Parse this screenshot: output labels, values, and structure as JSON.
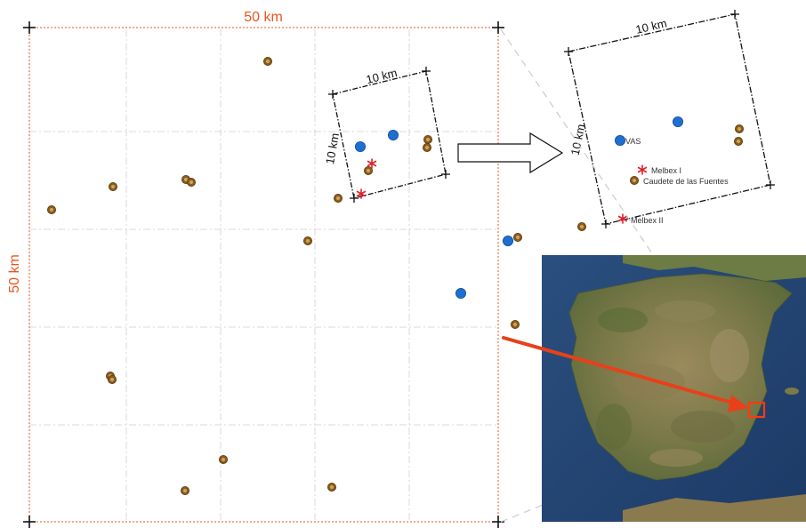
{
  "main_map": {
    "width_label": "50 km",
    "height_label": "50 km"
  },
  "inset_box": {
    "width_label": "10 km",
    "height_label": "10 km"
  },
  "zoom_map": {
    "width_label": "10 km",
    "height_label": "10 km",
    "sites": [
      {
        "label": "VAS"
      },
      {
        "label": "Melbex I"
      },
      {
        "label": "Caudete de las Fuentes"
      },
      {
        "label": "Melbex II"
      }
    ]
  },
  "colors": {
    "scale_frame": "#e8561f",
    "arrow": "#e8401a",
    "blue_station": "#1f6fd1",
    "brown_station": "#8a5a1b",
    "red_star": "#e0202a"
  },
  "icons": {
    "blue_station": "blue-dot-icon",
    "brown_station": "brown-ring-icon",
    "red_station": "red-asterisk-icon",
    "zoom_arrow": "outline-arrow-icon"
  }
}
